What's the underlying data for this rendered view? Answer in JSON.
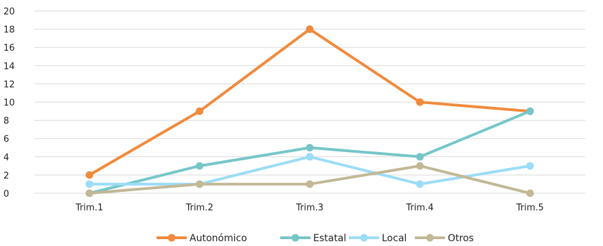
{
  "chart_data": {
    "type": "line",
    "title": "",
    "xlabel": "",
    "ylabel": "",
    "categories": [
      "Trim.1",
      "Trim.2",
      "Trim.3",
      "Trim.4",
      "Trim.5"
    ],
    "ylim": [
      0,
      20
    ],
    "yticks": [
      0,
      2,
      4,
      6,
      8,
      10,
      12,
      14,
      16,
      18,
      20
    ],
    "grid": true,
    "legend_position": "bottom",
    "series": [
      {
        "name": "Autonómico",
        "color": "#F08A3C",
        "values": [
          2,
          9,
          18,
          10,
          9
        ]
      },
      {
        "name": "Estatal",
        "color": "#76C6C8",
        "values": [
          0,
          3,
          5,
          4,
          9
        ]
      },
      {
        "name": "Local",
        "color": "#9BDCF8",
        "values": [
          1,
          1,
          4,
          1,
          3
        ]
      },
      {
        "name": "Otros",
        "color": "#C2B896",
        "values": [
          0,
          1,
          1,
          3,
          0
        ]
      }
    ]
  }
}
